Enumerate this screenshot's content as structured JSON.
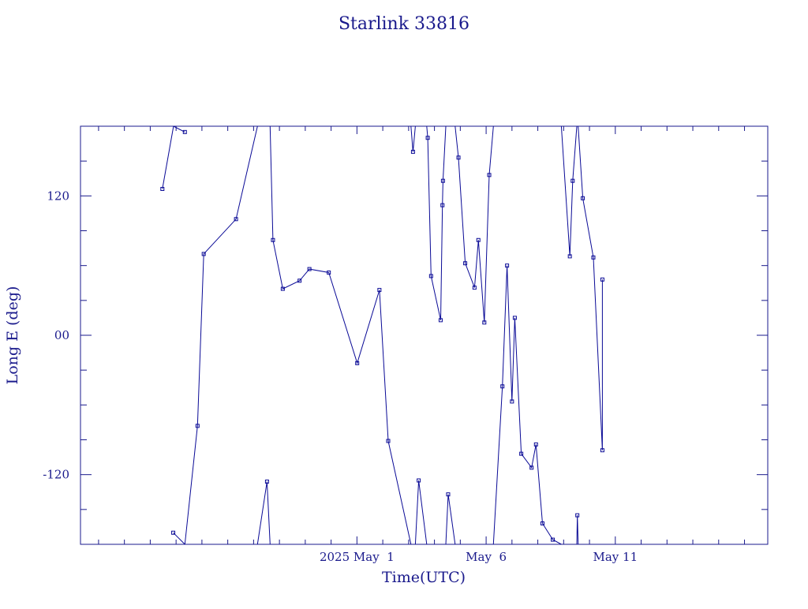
{
  "chart_data": {
    "type": "line",
    "title": "Starlink 33816",
    "xlabel": "Time(UTC)",
    "ylabel": "Long E (deg)",
    "color": "#0a0a96",
    "ylim": [
      -180,
      180
    ],
    "xlim_days": [
      -10.7,
      15.9
    ],
    "y_ticks": [
      {
        "value": 120,
        "label": "120"
      },
      {
        "value": 0,
        "label": "00"
      },
      {
        "value": -120,
        "label": "-120"
      }
    ],
    "x_ticks": [
      {
        "day": 0,
        "label": "2025 May  1"
      },
      {
        "day": 5,
        "label": "May  6"
      },
      {
        "day": 10,
        "label": "May 11"
      }
    ],
    "x_minor_step_days": 1,
    "y_minor_step": 30,
    "x_axis_note": "x values are days relative to 2025 May 1 00:00 UTC",
    "segments": [
      {
        "points": [
          [
            -7.53,
            126
          ],
          [
            -7.1,
            180
          ]
        ]
      },
      {
        "points": [
          [
            -7.1,
            180
          ],
          [
            -6.66,
            175
          ]
        ]
      },
      {
        "points": [
          [
            -7.11,
            -170
          ],
          [
            -6.66,
            -180
          ]
        ]
      },
      {
        "points": [
          [
            -6.66,
            -180
          ],
          [
            -6.17,
            -78
          ],
          [
            -5.93,
            70
          ],
          [
            -4.68,
            100
          ],
          [
            -3.85,
            180
          ]
        ]
      },
      {
        "points": [
          [
            -3.85,
            -180
          ],
          [
            -3.48,
            -126
          ],
          [
            -3.36,
            -180
          ]
        ]
      },
      {
        "points": [
          [
            -3.36,
            180
          ],
          [
            -3.25,
            82
          ],
          [
            -2.87,
            40
          ],
          [
            -2.22,
            47
          ],
          [
            -1.84,
            57
          ],
          [
            -1.09,
            54
          ],
          [
            0.01,
            -24
          ],
          [
            0.87,
            39
          ],
          [
            1.21,
            -91
          ],
          [
            2.09,
            -180
          ]
        ]
      },
      {
        "points": [
          [
            2.09,
            180
          ],
          [
            2.17,
            158
          ],
          [
            2.26,
            180
          ]
        ]
      },
      {
        "points": [
          [
            2.26,
            -180
          ],
          [
            2.39,
            -125
          ],
          [
            2.7,
            -180
          ]
        ]
      },
      {
        "points": [
          [
            2.7,
            180
          ],
          [
            2.74,
            170
          ],
          [
            2.87,
            51
          ],
          [
            3.24,
            13
          ],
          [
            3.31,
            112
          ],
          [
            3.33,
            133
          ],
          [
            3.44,
            180
          ]
        ]
      },
      {
        "points": [
          [
            3.44,
            -180
          ],
          [
            3.53,
            -137
          ],
          [
            3.8,
            -180
          ]
        ]
      },
      {
        "points": [
          [
            3.8,
            180
          ],
          [
            3.93,
            153
          ],
          [
            4.19,
            62
          ],
          [
            4.55,
            41
          ],
          [
            4.7,
            82
          ],
          [
            4.93,
            11
          ],
          [
            5.12,
            138
          ],
          [
            5.28,
            180
          ]
        ]
      },
      {
        "points": [
          [
            5.28,
            -180
          ],
          [
            5.63,
            -44
          ],
          [
            5.81,
            60
          ],
          [
            6.0,
            -57
          ],
          [
            6.11,
            15
          ],
          [
            6.36,
            -102
          ],
          [
            6.76,
            -114
          ],
          [
            6.93,
            -94
          ],
          [
            7.18,
            -162
          ],
          [
            7.58,
            -176
          ],
          [
            7.91,
            -180
          ]
        ]
      },
      {
        "points": [
          [
            7.91,
            180
          ],
          [
            8.24,
            68
          ],
          [
            8.35,
            133
          ],
          [
            8.51,
            180
          ]
        ]
      },
      {
        "points": [
          [
            8.51,
            -180
          ],
          [
            8.53,
            -155
          ],
          [
            8.56,
            -180
          ]
        ]
      },
      {
        "points": [
          [
            8.56,
            180
          ],
          [
            8.74,
            118
          ],
          [
            9.15,
            67
          ],
          [
            9.5,
            -99
          ],
          [
            9.5,
            48
          ]
        ]
      }
    ]
  }
}
